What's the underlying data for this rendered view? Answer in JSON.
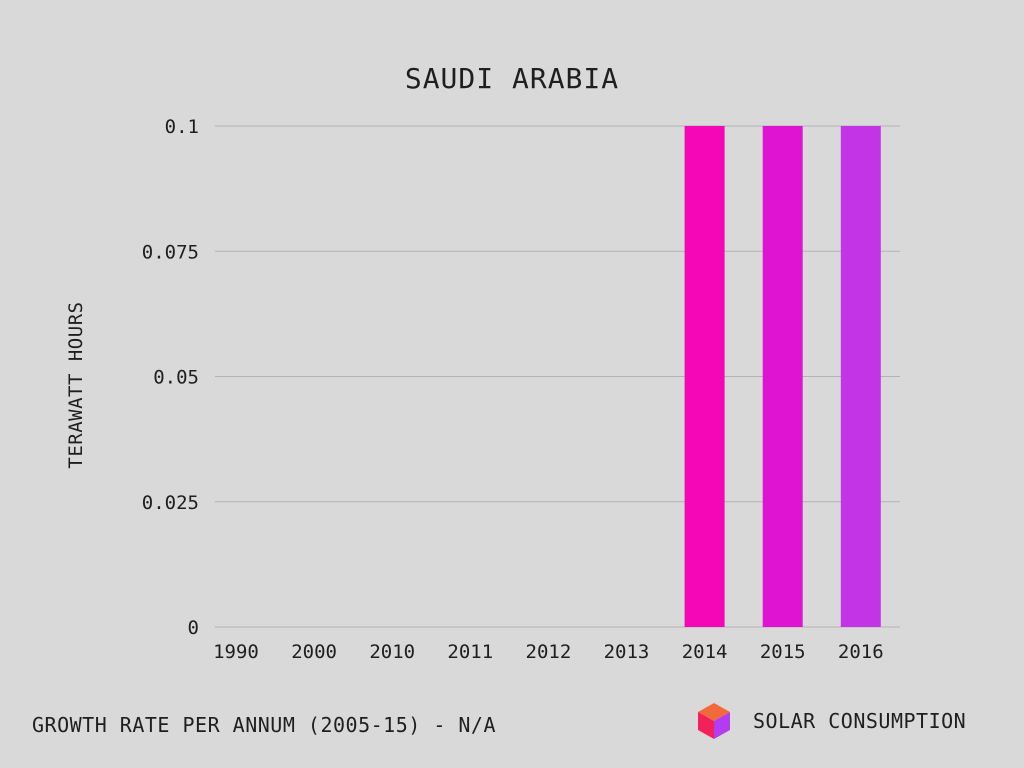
{
  "chart_data": {
    "type": "bar",
    "title": "SAUDI ARABIA",
    "ylabel": "TERAWATT HOURS",
    "xlabel": "",
    "categories": [
      "1990",
      "2000",
      "2010",
      "2011",
      "2012",
      "2013",
      "2014",
      "2015",
      "2016"
    ],
    "values": [
      0,
      0,
      0,
      0,
      0,
      0,
      0.1,
      0.1,
      0.1
    ],
    "bar_colors": [
      "#f506b7",
      "#f506b7",
      "#f506b7",
      "#f506b7",
      "#f506b7",
      "#f506b7",
      "#f506b7",
      "#de14d2",
      "#c234e6"
    ],
    "ylim": [
      0,
      0.1
    ],
    "yticks": [
      0,
      0.025,
      0.05,
      0.075,
      0.1
    ],
    "ytick_labels": [
      "0",
      "0.025",
      "0.05",
      "0.075",
      "0.1"
    ],
    "grid": true,
    "legend": "none"
  },
  "footer": {
    "growth_note": "GROWTH RATE PER ANNUM (2005-15) - N/A",
    "brand_label": "SOLAR CONSUMPTION",
    "brand_icon": "cube-icon"
  },
  "colors": {
    "background": "#d9d9d9",
    "grid": "#b3b3b3",
    "text": "#1f1f1f",
    "cube_top": "#f26a3b",
    "cube_left": "#f2215a",
    "cube_right": "#b43cf0"
  }
}
